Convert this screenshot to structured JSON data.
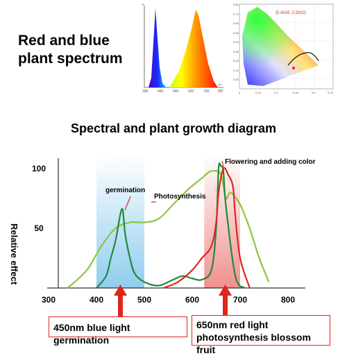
{
  "header": {
    "title": "Red and blue plant spectrum"
  },
  "spectrum_thumbnail": {
    "x_ticks": [
      "300",
      "460",
      "540",
      "620",
      "700",
      "780"
    ],
    "y_label": "%",
    "x_unit": "nm"
  },
  "cie_thumbnail": {
    "coordinate": "(0.4316, 0.2002)",
    "y_ticks": [
      "0.85",
      "0.75",
      "0.65",
      "0.55",
      "0.45",
      "0.35",
      "0.25",
      "0.15",
      "0.05"
    ],
    "x_ticks": [
      "0",
      "0.15",
      "0.3",
      "0.45",
      "0.6",
      "0.75"
    ]
  },
  "main": {
    "title": "Spectral and plant growth diagram",
    "ylabel": "Relative effect",
    "annotations": {
      "germination": "germination",
      "photosynthesis": "Photosynthesis",
      "flowering": "Flowering and adding color"
    },
    "callouts": {
      "blue": "450nm blue light germination",
      "red_line1": "650nm red light",
      "red_line2": "photosynthesis blossom fruit"
    },
    "colors": {
      "photosynthesis_curve": "#8cc63f",
      "germination_curve": "#1e8a3a",
      "flowering_curve": "#e0251b",
      "blue_band": "#8ccfee",
      "red_band": "#f08b8b",
      "arrow": "#e0251b"
    }
  },
  "chart_data": {
    "type": "line",
    "xlabel": "",
    "ylabel": "Relative effect",
    "x_ticks": [
      300,
      400,
      500,
      600,
      700,
      800
    ],
    "y_ticks": [
      50,
      100
    ],
    "xlim": [
      300,
      850
    ],
    "ylim": [
      0,
      110
    ],
    "bands": [
      {
        "label": "blue",
        "x": [
          400,
          500
        ]
      },
      {
        "label": "red",
        "x": [
          625,
          700
        ]
      }
    ],
    "series": [
      {
        "name": "Photosynthesis",
        "x": [
          340,
          380,
          410,
          440,
          470,
          500,
          530,
          560,
          590,
          620,
          640,
          660,
          670,
          680,
          700,
          720,
          740,
          760
        ],
        "y": [
          0,
          15,
          35,
          50,
          55,
          55,
          58,
          70,
          82,
          92,
          98,
          95,
          75,
          80,
          70,
          50,
          25,
          5
        ]
      },
      {
        "name": "germination",
        "x": [
          400,
          420,
          430,
          440,
          450,
          455,
          460,
          470,
          480,
          500,
          530,
          560,
          580,
          600,
          620,
          640,
          650,
          655,
          660,
          665,
          670,
          690,
          710
        ],
        "y": [
          0,
          10,
          25,
          40,
          62,
          65,
          45,
          25,
          12,
          5,
          2,
          7,
          10,
          8,
          7,
          15,
          50,
          100,
          102,
          98,
          70,
          10,
          0
        ]
      },
      {
        "name": "Flowering and adding color",
        "x": [
          540,
          570,
          600,
          620,
          640,
          650,
          655,
          665,
          675,
          685,
          690,
          700,
          720
        ],
        "y": [
          0,
          5,
          15,
          25,
          35,
          55,
          80,
          100,
          95,
          85,
          60,
          25,
          0
        ]
      }
    ]
  }
}
